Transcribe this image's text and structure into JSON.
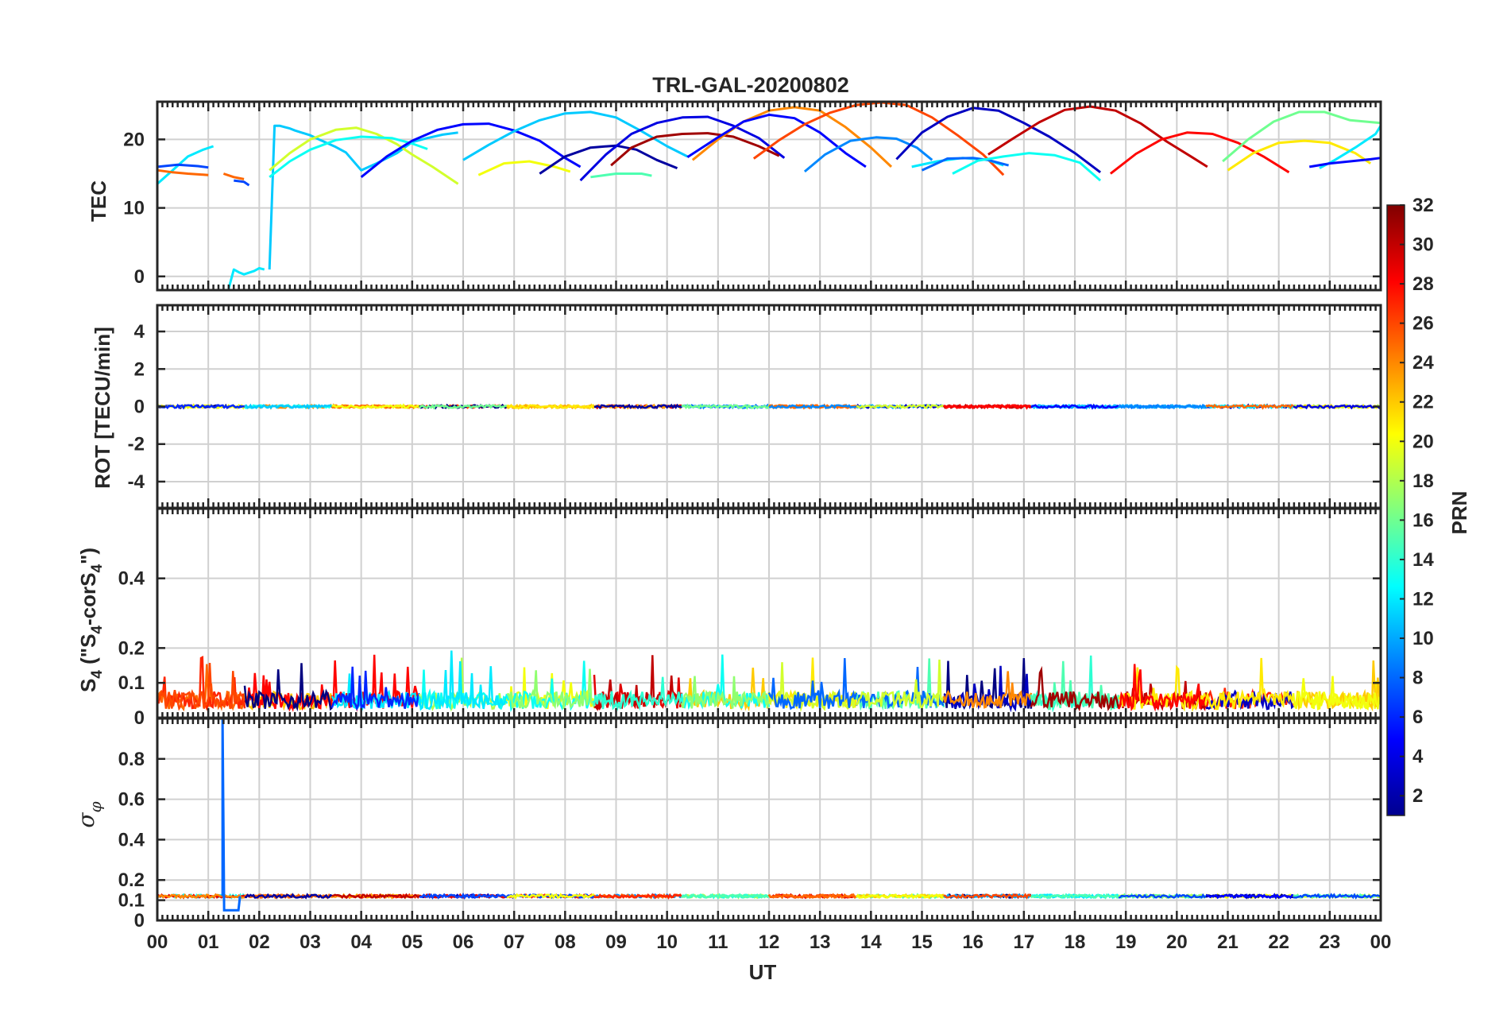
{
  "figure": {
    "title": "TRL-GAL-20200802",
    "xlabel": "UT",
    "colorbar_label": "PRN"
  },
  "chart_data": [
    {
      "type": "line",
      "panel": "tec",
      "ylabel": "TEC",
      "xlim": [
        0,
        24
      ],
      "ylim": [
        -2,
        25.5
      ],
      "yticks": [
        0,
        10,
        20
      ],
      "grid": true,
      "series": [
        {
          "prn": 11,
          "x": [
            2.2,
            2.3,
            2.4,
            2.5,
            2.6,
            2.7,
            3.0,
            3.2,
            3.5,
            3.7,
            4.0,
            4.3,
            4.7,
            5.0,
            5.3,
            5.6,
            5.9
          ],
          "y": [
            1.0,
            22.0,
            22.0,
            21.8,
            21.6,
            21.3,
            20.6,
            19.9,
            18.9,
            18.1,
            15.5,
            16.5,
            18.0,
            19.6,
            20.2,
            20.7,
            21.0
          ]
        },
        {
          "prn": 19,
          "x": [
            2.2,
            2.6,
            3.0,
            3.5,
            3.9,
            4.3,
            4.7,
            5.0,
            5.4,
            5.9
          ],
          "y": [
            15.5,
            18.0,
            20.0,
            21.4,
            21.7,
            20.8,
            19.3,
            17.8,
            16.0,
            13.5
          ]
        },
        {
          "prn": 13,
          "x": [
            2.2,
            2.6,
            3.0,
            3.5,
            4.0,
            4.6,
            5.0,
            5.3
          ],
          "y": [
            14.5,
            16.8,
            18.5,
            19.9,
            20.4,
            20.2,
            19.4,
            18.6
          ]
        },
        {
          "prn": 5,
          "x": [
            4.0,
            4.5,
            5.0,
            5.5,
            6.0,
            6.5,
            7.0,
            7.5,
            8.0,
            8.3
          ],
          "y": [
            14.5,
            17.5,
            19.8,
            21.4,
            22.2,
            22.3,
            21.3,
            19.8,
            17.3,
            16.0
          ]
        },
        {
          "prn": 11,
          "x": [
            6.0,
            6.5,
            7.0,
            7.5,
            8.0,
            8.5,
            9.0,
            9.5,
            10.0,
            10.4
          ],
          "y": [
            17.0,
            19.2,
            21.2,
            22.8,
            23.8,
            24.0,
            23.2,
            21.2,
            19.0,
            17.5
          ]
        },
        {
          "prn": 20,
          "x": [
            6.3,
            6.8,
            7.3,
            7.8,
            8.1
          ],
          "y": [
            14.8,
            16.5,
            16.8,
            16.0,
            15.3
          ]
        },
        {
          "prn": 15,
          "x": [
            8.5,
            9.0,
            9.5,
            9.7
          ],
          "y": [
            14.5,
            15.0,
            15.0,
            14.7
          ]
        },
        {
          "prn": 2,
          "x": [
            7.5,
            8.0,
            8.5,
            9.0,
            9.4,
            9.8,
            10.2
          ],
          "y": [
            15.0,
            17.5,
            18.8,
            19.1,
            18.5,
            17.0,
            15.8
          ]
        },
        {
          "prn": 4,
          "x": [
            8.3,
            8.8,
            9.3,
            9.8,
            10.3,
            10.8,
            11.3,
            11.8,
            12.3
          ],
          "y": [
            14.0,
            17.8,
            20.8,
            22.4,
            23.2,
            23.3,
            22.0,
            20.2,
            17.3
          ]
        },
        {
          "prn": 31,
          "x": [
            8.9,
            9.3,
            9.8,
            10.3,
            10.8,
            11.3,
            11.8,
            12.2
          ],
          "y": [
            16.2,
            18.8,
            20.4,
            20.8,
            20.9,
            20.4,
            19.0,
            17.6
          ]
        },
        {
          "prn": 24,
          "x": [
            10.5,
            11.0,
            11.5,
            12.0,
            12.5,
            13.0,
            13.5,
            14.0,
            14.4
          ],
          "y": [
            17.0,
            20.0,
            22.6,
            24.2,
            24.7,
            24.2,
            21.8,
            18.8,
            16.0
          ]
        },
        {
          "prn": 5,
          "x": [
            10.4,
            11.0,
            11.5,
            12.0,
            12.5,
            13.0,
            13.5,
            13.9
          ],
          "y": [
            17.4,
            20.3,
            22.6,
            23.6,
            23.1,
            21.0,
            18.0,
            16.0
          ]
        },
        {
          "prn": 26,
          "x": [
            11.7,
            12.2,
            12.7,
            13.2,
            13.7,
            14.2,
            14.7,
            15.2,
            15.7,
            16.2,
            16.6
          ],
          "y": [
            17.2,
            19.9,
            22.2,
            23.9,
            25.0,
            25.4,
            25.0,
            23.2,
            20.6,
            17.8,
            14.8
          ]
        },
        {
          "prn": 9,
          "x": [
            12.7,
            13.1,
            13.6,
            14.1,
            14.5,
            14.9,
            15.2
          ],
          "y": [
            15.3,
            17.8,
            19.8,
            20.3,
            20.1,
            18.8,
            17.0
          ]
        },
        {
          "prn": 3,
          "x": [
            14.5,
            15.0,
            15.5,
            16.0,
            16.5,
            17.0,
            17.5,
            18.0,
            18.5
          ],
          "y": [
            17.1,
            21.0,
            23.3,
            24.6,
            24.2,
            22.4,
            20.4,
            18.0,
            15.2
          ]
        },
        {
          "prn": 12,
          "x": [
            14.8,
            15.3,
            15.8,
            16.3,
            16.6
          ],
          "y": [
            16.0,
            16.8,
            17.3,
            17.0,
            16.2
          ]
        },
        {
          "prn": 8,
          "x": [
            15.0,
            15.5,
            16.0,
            16.3,
            16.7
          ],
          "y": [
            15.5,
            17.2,
            17.3,
            17.0,
            16.2
          ]
        },
        {
          "prn": 13,
          "x": [
            15.6,
            16.1,
            16.6,
            17.1,
            17.6,
            18.1,
            18.5
          ],
          "y": [
            15.0,
            16.9,
            17.5,
            18.0,
            17.7,
            16.6,
            14.0
          ]
        },
        {
          "prn": 30,
          "x": [
            16.3,
            16.8,
            17.3,
            17.8,
            18.3,
            18.8,
            19.3,
            19.8,
            20.3,
            20.6
          ],
          "y": [
            17.8,
            20.2,
            22.5,
            24.3,
            24.8,
            24.2,
            22.3,
            19.7,
            17.4,
            16.0
          ]
        },
        {
          "prn": 28,
          "x": [
            18.7,
            19.2,
            19.7,
            20.2,
            20.7,
            21.2,
            21.7,
            22.2
          ],
          "y": [
            15.0,
            17.9,
            20.0,
            21.0,
            20.8,
            19.5,
            17.5,
            15.2
          ]
        },
        {
          "prn": 16,
          "x": [
            20.9,
            21.4,
            21.9,
            22.4,
            22.9,
            23.4,
            24.0
          ],
          "y": [
            16.8,
            20.0,
            22.6,
            24.0,
            24.0,
            22.8,
            22.4
          ]
        },
        {
          "prn": 21,
          "x": [
            21.0,
            21.5,
            22.0,
            22.5,
            23.0,
            23.5,
            23.8
          ],
          "y": [
            15.5,
            18.0,
            19.5,
            19.8,
            19.5,
            18.0,
            16.5
          ]
        },
        {
          "prn": 12,
          "x": [
            22.8,
            23.1,
            23.5,
            23.9,
            24.0
          ],
          "y": [
            15.8,
            17.0,
            18.8,
            20.8,
            22.0
          ]
        },
        {
          "prn": 5,
          "x": [
            22.6,
            23.0,
            23.4,
            23.8,
            24.0
          ],
          "y": [
            16.0,
            16.5,
            16.8,
            17.1,
            17.3
          ]
        },
        {
          "prn": 12,
          "x": [
            0.0,
            0.3,
            0.6,
            0.9,
            1.1
          ],
          "y": [
            13.5,
            15.5,
            17.5,
            18.5,
            19.0
          ]
        },
        {
          "prn": 7,
          "x": [
            0.0,
            0.4,
            0.8,
            1.0
          ],
          "y": [
            16.0,
            16.3,
            16.1,
            15.9
          ]
        },
        {
          "prn": 25,
          "x": [
            0.0,
            0.3,
            0.6,
            1.0
          ],
          "y": [
            15.5,
            15.2,
            15.0,
            14.8
          ]
        },
        {
          "prn": 25,
          "x": [
            1.3,
            1.5,
            1.7
          ],
          "y": [
            15.0,
            14.5,
            14.2
          ]
        },
        {
          "prn": 7,
          "x": [
            1.5,
            1.7,
            1.8
          ],
          "y": [
            14.0,
            13.8,
            13.3
          ]
        },
        {
          "prn": 12,
          "x": [
            1.4,
            1.5,
            1.6,
            1.7,
            1.9,
            2.0,
            2.1
          ],
          "y": [
            -1.8,
            1.0,
            0.6,
            0.3,
            0.8,
            1.2,
            1.0
          ]
        }
      ]
    },
    {
      "type": "line",
      "panel": "rot",
      "ylabel": "ROT [TECU/min]",
      "xlim": [
        0,
        24
      ],
      "ylim": [
        -5.4,
        5.4
      ],
      "yticks": [
        -4,
        -2,
        0,
        2,
        4
      ],
      "grid": true,
      "baseline": 0.0,
      "noise_amplitude": 0.15
    },
    {
      "type": "line",
      "panel": "s4",
      "ylabel": "S4 (\"S4-corS4\")",
      "xlim": [
        0,
        24
      ],
      "ylim": [
        0,
        0.6
      ],
      "yticks": [
        0,
        0.1,
        0.2,
        0.4
      ],
      "grid": true,
      "baseline": 0.05,
      "peak_max": 0.17
    },
    {
      "type": "line",
      "panel": "sigma_phi",
      "ylabel": "σ φ",
      "xlim": [
        0,
        24
      ],
      "ylim": [
        0,
        1
      ],
      "yticks": [
        0,
        0.1,
        0.2,
        0.4,
        0.6,
        0.8
      ],
      "grid": true,
      "baseline": 0.12,
      "spike": {
        "x": 1.28,
        "y": 1.0
      }
    }
  ],
  "x_axis": {
    "ticks": [
      "00",
      "01",
      "02",
      "03",
      "04",
      "05",
      "06",
      "07",
      "08",
      "09",
      "10",
      "11",
      "12",
      "13",
      "14",
      "15",
      "16",
      "17",
      "18",
      "19",
      "20",
      "21",
      "22",
      "23",
      "00"
    ]
  },
  "colorbar": {
    "min": 1,
    "max": 32,
    "ticks": [
      2,
      4,
      6,
      8,
      10,
      12,
      14,
      16,
      18,
      20,
      22,
      24,
      26,
      28,
      30,
      32
    ],
    "colormap": "jet"
  }
}
